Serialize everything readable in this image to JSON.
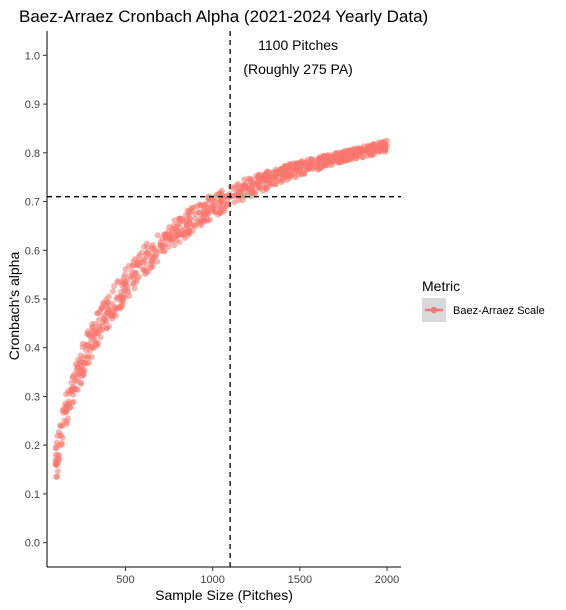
{
  "chart_data": {
    "type": "scatter",
    "title": "Baez-Arraez Cronbach Alpha (2021-2024 Yearly Data)",
    "xlabel": "Sample Size (Pitches)",
    "ylabel": "Cronbach's alpha",
    "xlim": [
      50,
      2080
    ],
    "ylim": [
      -0.05,
      1.05
    ],
    "x_ticks": [
      500,
      1000,
      1500,
      2000
    ],
    "y_ticks": [
      0.0,
      0.1,
      0.2,
      0.3,
      0.4,
      0.5,
      0.6,
      0.7,
      0.8,
      0.9,
      1.0
    ],
    "vline_x": 1100,
    "hline_y": 0.71,
    "annotation": [
      "1100 Pitches",
      "(Roughly 275 PA)"
    ],
    "legend": {
      "title": "Metric",
      "position": "right",
      "entries": [
        "Baez-Arraez Scale"
      ]
    },
    "point_color": "#F8766D",
    "series": [
      {
        "x": [
          100,
          110,
          120,
          130,
          140,
          150,
          160,
          175,
          190,
          200,
          225,
          250,
          275,
          300,
          325,
          350,
          375,
          400,
          425,
          450,
          475,
          500,
          550,
          600,
          650,
          700,
          750,
          800,
          850,
          900,
          950,
          1000,
          1050,
          1100,
          1150,
          1200,
          1250,
          1300,
          1350,
          1400,
          1450,
          1500,
          1550,
          1600,
          1650,
          1700,
          1750,
          1800,
          1850,
          1900,
          1950,
          2000
        ],
        "y": [
          0.16,
          0.18,
          0.2,
          0.22,
          0.24,
          0.25,
          0.27,
          0.29,
          0.31,
          0.32,
          0.345,
          0.37,
          0.395,
          0.41,
          0.43,
          0.445,
          0.46,
          0.475,
          0.49,
          0.5,
          0.515,
          0.53,
          0.55,
          0.575,
          0.595,
          0.61,
          0.625,
          0.64,
          0.655,
          0.665,
          0.68,
          0.69,
          0.7,
          0.71,
          0.72,
          0.728,
          0.735,
          0.742,
          0.749,
          0.756,
          0.762,
          0.768,
          0.773,
          0.778,
          0.783,
          0.788,
          0.793,
          0.797,
          0.801,
          0.805,
          0.81,
          0.814
        ]
      }
    ]
  }
}
